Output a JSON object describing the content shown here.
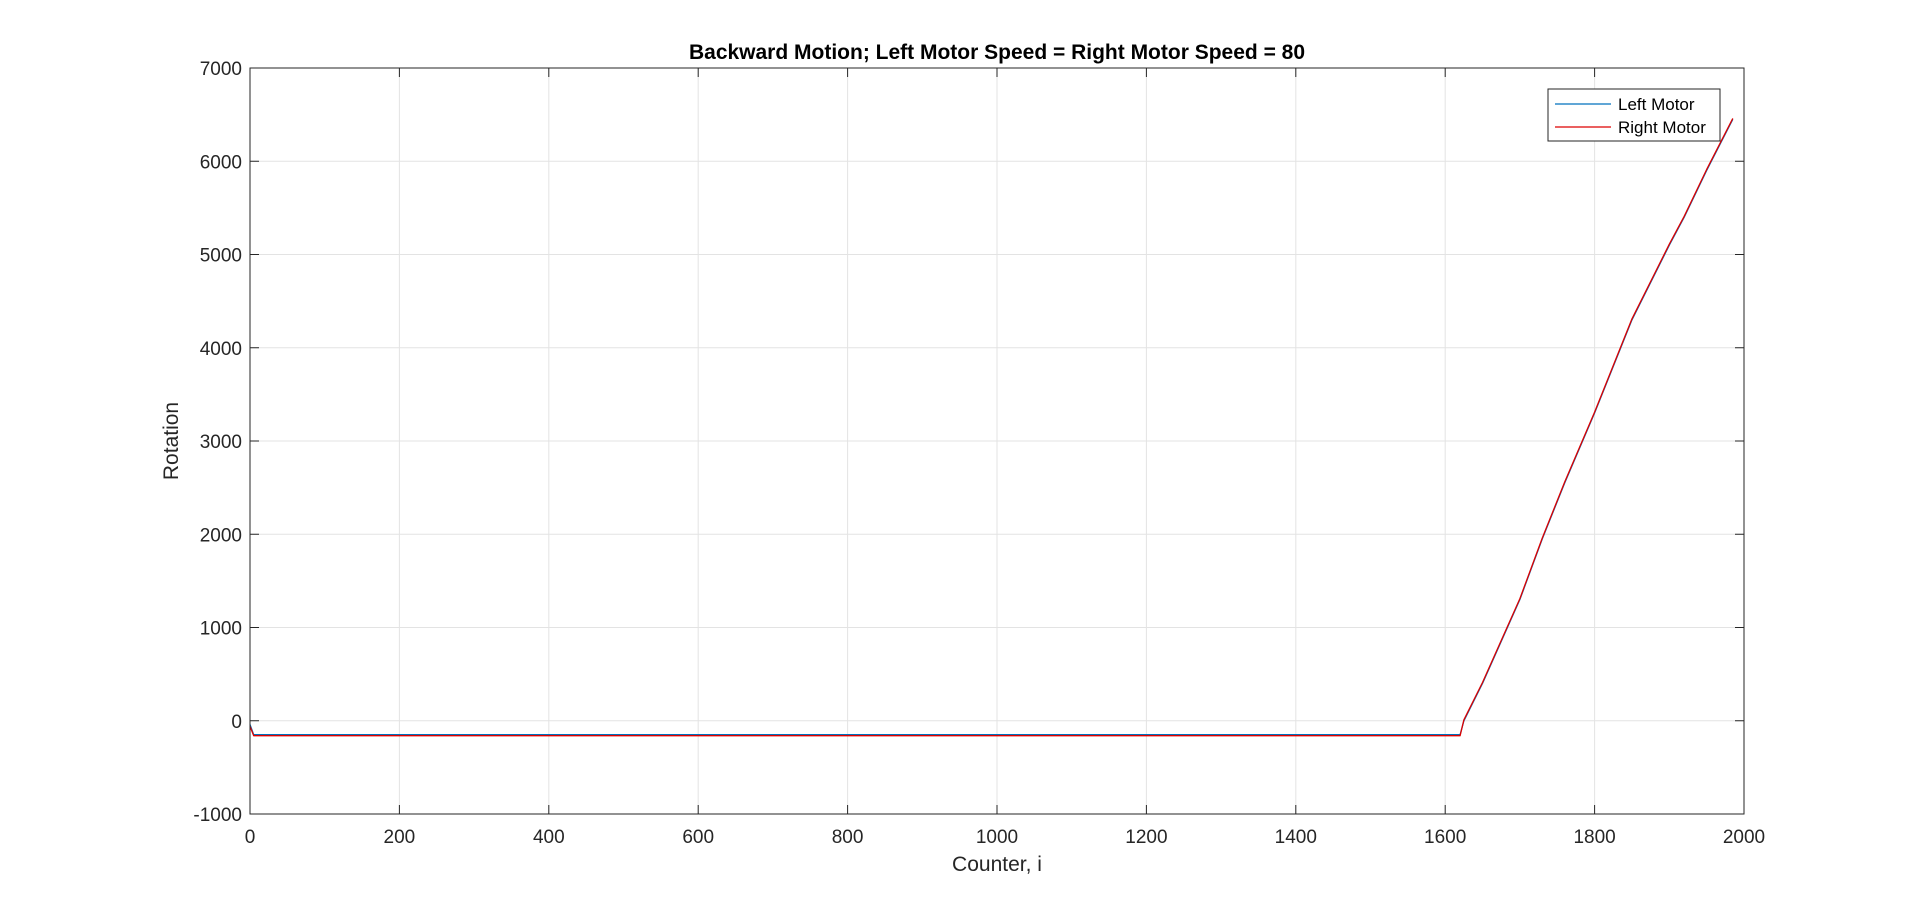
{
  "chart_data": {
    "type": "line",
    "title": "Backward Motion; Left Motor Speed = Right Motor Speed = 80",
    "xlabel": "Counter, i",
    "ylabel": "Rotation",
    "xlim": [
      0,
      2000
    ],
    "ylim": [
      -1000,
      7000
    ],
    "xticks": [
      0,
      200,
      400,
      600,
      800,
      1000,
      1200,
      1400,
      1600,
      1800,
      2000
    ],
    "yticks": [
      -1000,
      0,
      1000,
      2000,
      3000,
      4000,
      5000,
      6000,
      7000
    ],
    "grid": true,
    "legend_position": "top-right",
    "series": [
      {
        "name": "Left Motor",
        "color": "#0072BD",
        "x": [
          0,
          5,
          1620,
          1625,
          1650,
          1700,
          1730,
          1760,
          1800,
          1850,
          1900,
          1920,
          1950,
          1985
        ],
        "y": [
          -40,
          -150,
          -150,
          0,
          400,
          1300,
          1950,
          2550,
          3300,
          4300,
          5100,
          5400,
          5900,
          6450
        ]
      },
      {
        "name": "Right Motor",
        "color": "#DD0000",
        "x": [
          0,
          5,
          1620,
          1625,
          1650,
          1700,
          1730,
          1760,
          1800,
          1850,
          1900,
          1920,
          1950,
          1985
        ],
        "y": [
          -60,
          -160,
          -160,
          10,
          410,
          1310,
          1960,
          2560,
          3310,
          4310,
          5110,
          5410,
          5910,
          6460
        ]
      }
    ]
  }
}
